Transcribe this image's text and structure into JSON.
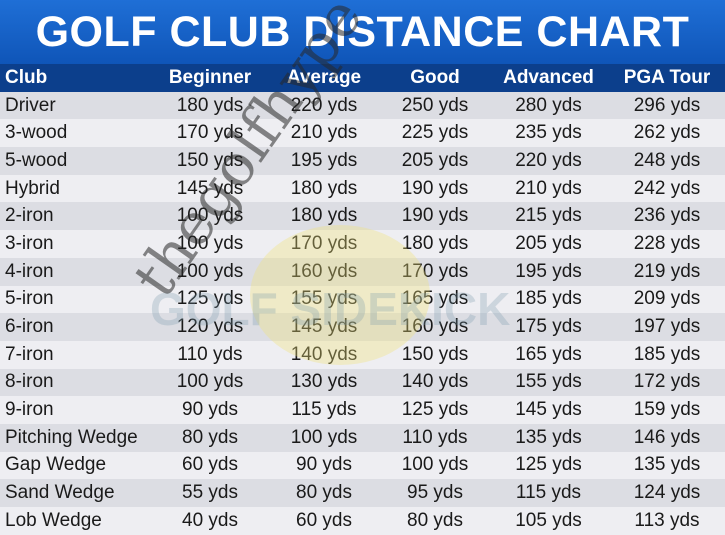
{
  "chart_data": {
    "type": "table",
    "title": "GOLF CLUB DISTANCE CHART",
    "columns": [
      "Club",
      "Beginner",
      "Average",
      "Good",
      "Advanced",
      "PGA Tour"
    ],
    "rows": [
      [
        "Driver",
        "180 yds",
        "220 yds",
        "250 yds",
        "280 yds",
        "296 yds"
      ],
      [
        "3-wood",
        "170 yds",
        "210 yds",
        "225 yds",
        "235 yds",
        "262 yds"
      ],
      [
        "5-wood",
        "150 yds",
        "195 yds",
        "205 yds",
        "220 yds",
        "248 yds"
      ],
      [
        "Hybrid",
        "145 yds",
        "180 yds",
        "190 yds",
        "210 yds",
        "242 yds"
      ],
      [
        "2-iron",
        "100 yds",
        "180 yds",
        "190 yds",
        "215 yds",
        "236 yds"
      ],
      [
        "3-iron",
        "100 yds",
        "170 yds",
        "180 yds",
        "205 yds",
        "228 yds"
      ],
      [
        "4-iron",
        "100 yds",
        "160 yds",
        "170 yds",
        "195 yds",
        "219 yds"
      ],
      [
        "5-iron",
        "125 yds",
        "155 yds",
        "165 yds",
        "185 yds",
        "209 yds"
      ],
      [
        "6-iron",
        "120 yds",
        "145 yds",
        "160 yds",
        "175 yds",
        "197 yds"
      ],
      [
        "7-iron",
        "110 yds",
        "140 yds",
        "150 yds",
        "165 yds",
        "185 yds"
      ],
      [
        "8-iron",
        "100 yds",
        "130 yds",
        "140 yds",
        "155 yds",
        "172 yds"
      ],
      [
        "9-iron",
        "90 yds",
        "115 yds",
        "125 yds",
        "145 yds",
        "159 yds"
      ],
      [
        "Pitching Wedge",
        "80 yds",
        "100 yds",
        "110 yds",
        "135 yds",
        "146 yds"
      ],
      [
        "Gap Wedge",
        "60 yds",
        "90 yds",
        "100 yds",
        "125 yds",
        "135 yds"
      ],
      [
        "Sand Wedge",
        "55 yds",
        "80 yds",
        "95 yds",
        "115 yds",
        "124 yds"
      ],
      [
        "Lob Wedge",
        "40 yds",
        "60 yds",
        "80 yds",
        "105 yds",
        "113 yds"
      ]
    ]
  },
  "watermark": {
    "text": "thegolfhype",
    "logo_text": "GOLF SIDEKICK"
  },
  "colors": {
    "title_bg": "#1565cc",
    "header_bg": "#0c3f8c",
    "row_odd": "#dcdde3",
    "row_even": "#eeeef2"
  }
}
